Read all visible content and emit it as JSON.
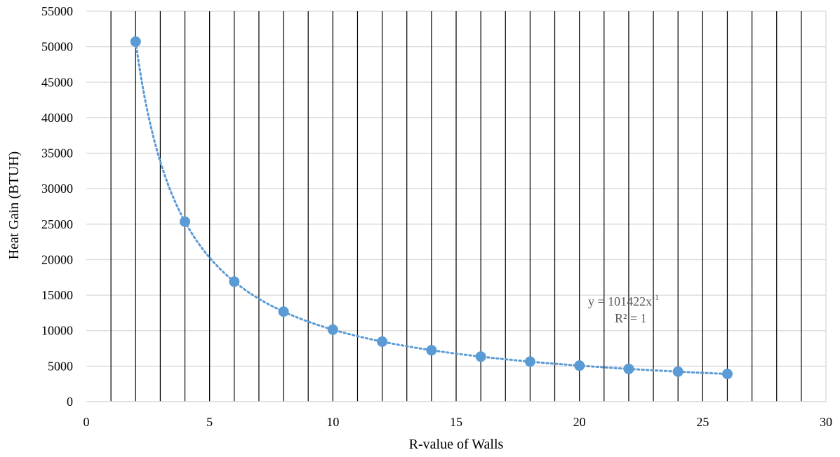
{
  "chart_data": {
    "type": "scatter",
    "xlabel": "R-value of Walls",
    "ylabel": "Heat Gain (BTUH)",
    "xlim": [
      0,
      30
    ],
    "ylim": [
      0,
      55000
    ],
    "x_ticks": [
      0,
      5,
      10,
      15,
      20,
      25,
      30
    ],
    "y_ticks": [
      0,
      5000,
      10000,
      15000,
      20000,
      25000,
      30000,
      35000,
      40000,
      45000,
      50000,
      55000
    ],
    "grid": true,
    "vertical_bars_at": [
      1,
      2,
      3,
      4,
      5,
      6,
      7,
      8,
      9,
      10,
      11,
      12,
      13,
      14,
      15,
      16,
      17,
      18,
      19,
      20,
      21,
      22,
      23,
      24,
      25,
      26,
      27,
      28,
      29
    ],
    "series": [
      {
        "x": [
          2,
          4,
          6,
          8,
          10,
          12,
          14,
          16,
          18,
          20,
          22,
          24,
          26
        ],
        "y": [
          50711,
          25356,
          16904,
          12678,
          10142,
          8452,
          7244,
          6339,
          5635,
          5071,
          4610,
          4226,
          3901
        ],
        "color": "#5B9BD5",
        "marker": "circle"
      }
    ],
    "trendline": {
      "type": "power",
      "coefficient": 101422,
      "exponent": -1,
      "style": "dotted",
      "color": "#5B9BD5",
      "equation_base": "y = 101422x",
      "equation_exp": "-1",
      "r2_label": "R² = 1"
    }
  }
}
